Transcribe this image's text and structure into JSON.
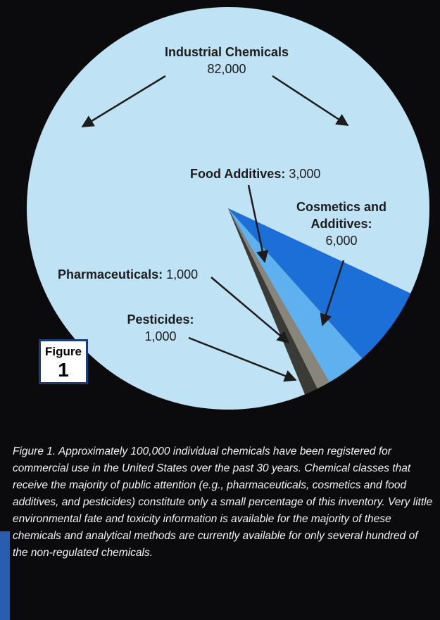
{
  "chart_data": {
    "type": "pie",
    "categories": [
      "Cosmetics and Additives:",
      "Food Additives:",
      "Pharmaceuticals:",
      "Pesticides:",
      "Industrial Chemicals"
    ],
    "values": [
      6000,
      3000,
      1000,
      1000,
      82000
    ],
    "value_labels": [
      "6,000",
      "3,000",
      "1,000",
      "1,000",
      "82,000"
    ],
    "colors": [
      "#1d6fd8",
      "#5fb0ee",
      "#8a857a",
      "#3a3a36",
      "#bfe2f5"
    ],
    "badge_text": "Figure",
    "badge_number": "1",
    "caption": "Figure 1. Approximately 100,000 individual chemicals have been registered for commercial use in the United States over the past 30 years. Chemical classes that receive the majority of public attention (e.g., pharmaceuticals, cosmetics and food additives, and pesticides) constitute only a small percentage of this inventory. Very little environmental fate and toxicity information is available for the majority of these chemicals and analytical methods are currently available for only several hundred of the non-regulated chemicals."
  }
}
